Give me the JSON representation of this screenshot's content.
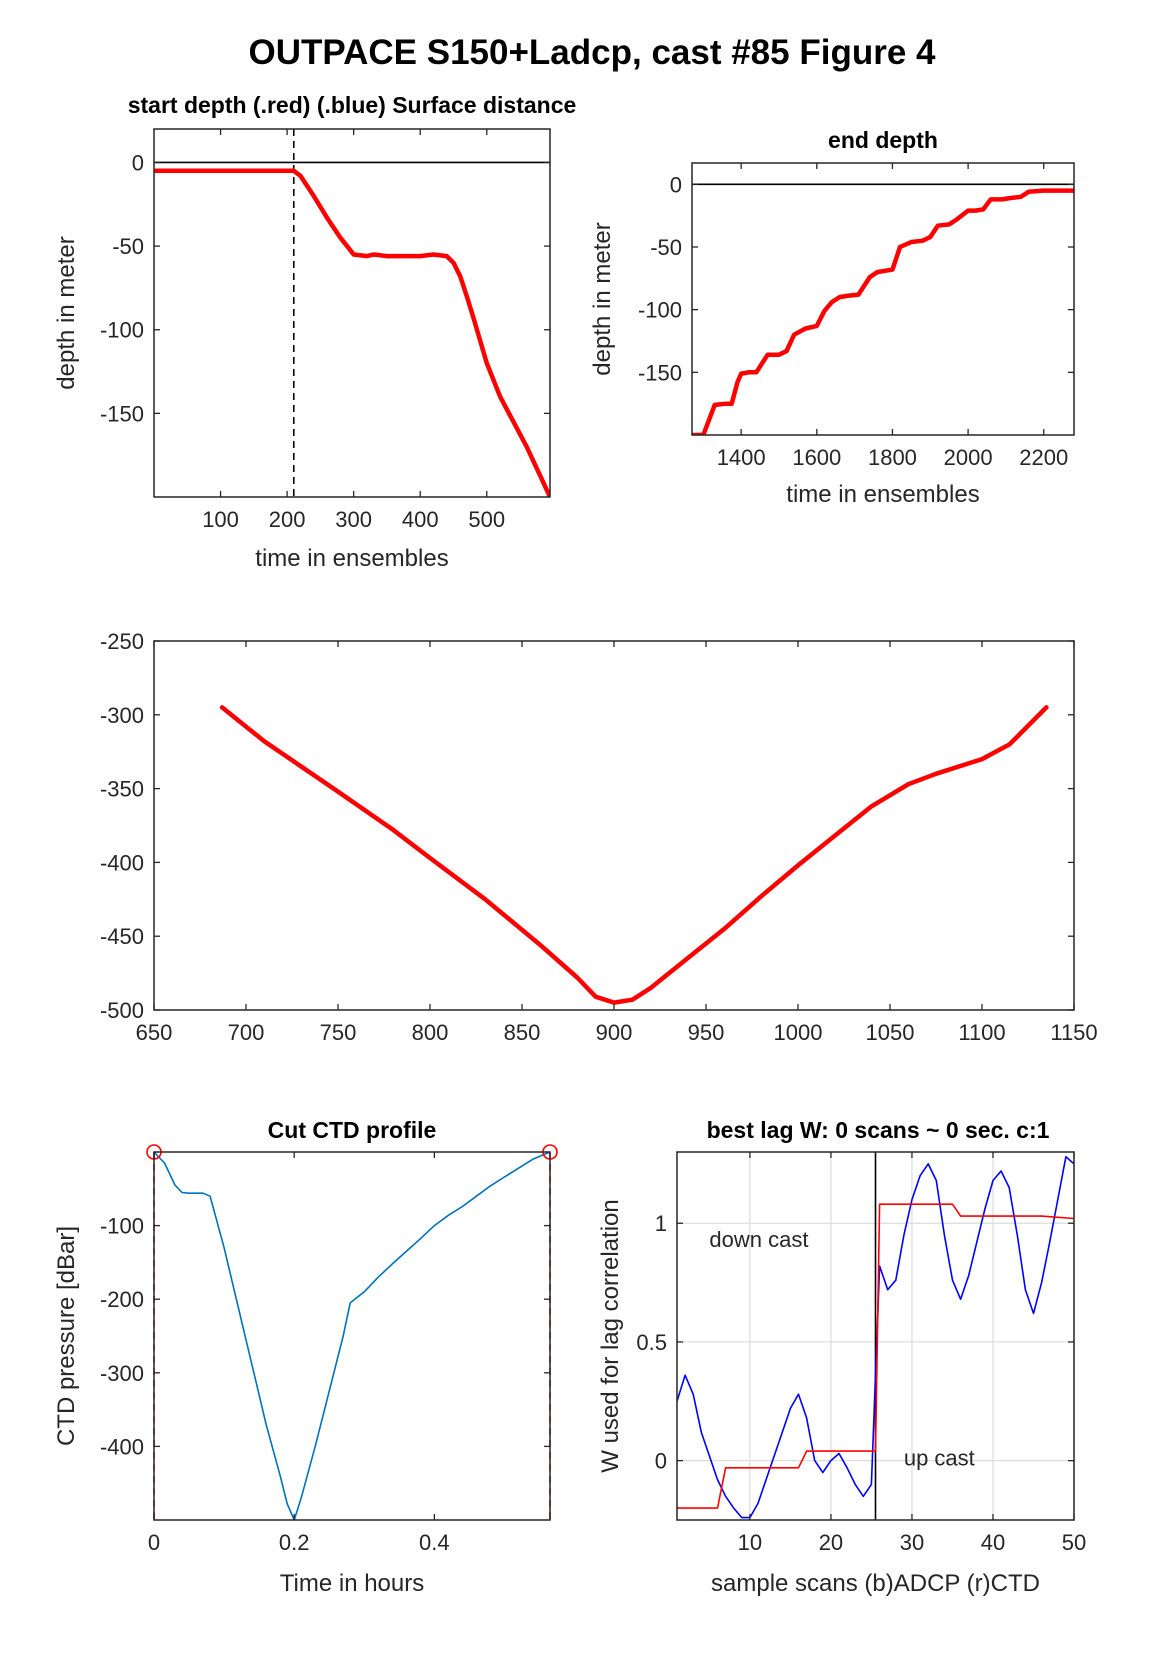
{
  "figure_title": "OUTPACE S150+Ladcp, cast #85   Figure 4",
  "chart_data": [
    {
      "id": "start_depth",
      "type": "line",
      "title": "start depth (.red) (.blue) Surface distance",
      "xlabel": "time in ensembles",
      "ylabel": "depth in meter",
      "xlim": [
        0,
        595
      ],
      "ylim": [
        -200,
        20
      ],
      "xticks": [
        100,
        200,
        300,
        400,
        500
      ],
      "yticks": [
        0,
        -50,
        -100,
        -150
      ],
      "grid": false,
      "reference_lines": [
        {
          "orientation": "horizontal",
          "value": 0,
          "style": "solid",
          "color": "#000000"
        },
        {
          "orientation": "vertical",
          "value": 210,
          "style": "dashed",
          "color": "#000000"
        }
      ],
      "series": [
        {
          "color": "#ff0000",
          "x": [
            0,
            100,
            200,
            210,
            220,
            240,
            260,
            280,
            300,
            320,
            330,
            350,
            380,
            400,
            420,
            440,
            450,
            460,
            470,
            480,
            500,
            520,
            540,
            560,
            580,
            595
          ],
          "y": [
            -5,
            -5,
            -5,
            -5,
            -8,
            -20,
            -33,
            -45,
            -55,
            -56,
            -55,
            -56,
            -56,
            -56,
            -55,
            -56,
            -60,
            -68,
            -80,
            -93,
            -120,
            -140,
            -155,
            -170,
            -187,
            -200
          ]
        }
      ]
    },
    {
      "id": "end_depth",
      "type": "line",
      "title": "end depth",
      "xlabel": "time in ensembles",
      "ylabel": "depth in meter",
      "xlim": [
        1270,
        2280
      ],
      "ylim": [
        -200,
        17
      ],
      "xticks": [
        1400,
        1600,
        1800,
        2000,
        2200
      ],
      "yticks": [
        0,
        -50,
        -100,
        -150
      ],
      "grid": false,
      "reference_lines": [
        {
          "orientation": "horizontal",
          "value": 0,
          "style": "solid",
          "color": "#000000"
        }
      ],
      "series": [
        {
          "color": "#ff0000",
          "x": [
            1270,
            1300,
            1330,
            1360,
            1375,
            1390,
            1400,
            1420,
            1440,
            1470,
            1500,
            1520,
            1540,
            1570,
            1600,
            1620,
            1640,
            1660,
            1680,
            1710,
            1740,
            1760,
            1780,
            1800,
            1820,
            1850,
            1880,
            1900,
            1920,
            1950,
            1970,
            2000,
            2020,
            2040,
            2060,
            2090,
            2110,
            2140,
            2160,
            2200,
            2280
          ],
          "y": [
            -200,
            -200,
            -176,
            -175,
            -175,
            -158,
            -151,
            -150,
            -150,
            -136,
            -136,
            -133,
            -120,
            -115,
            -113,
            -101,
            -94,
            -90,
            -89,
            -88,
            -74,
            -70,
            -69,
            -68,
            -50,
            -46,
            -45,
            -42,
            -33,
            -32,
            -28,
            -21,
            -21,
            -20,
            -12,
            -12,
            -11,
            -10,
            -6,
            -5,
            -5
          ]
        }
      ]
    },
    {
      "id": "middle_panel",
      "type": "line",
      "title": "",
      "xlabel": "",
      "ylabel": "",
      "xlim": [
        650,
        1150
      ],
      "ylim": [
        -500,
        -250
      ],
      "xticks": [
        650,
        700,
        750,
        800,
        850,
        900,
        950,
        1000,
        1050,
        1100,
        1150
      ],
      "yticks": [
        -250,
        -300,
        -350,
        -400,
        -450,
        -500
      ],
      "grid": false,
      "series": [
        {
          "color": "#ff0000",
          "x": [
            687,
            710,
            730,
            750,
            780,
            800,
            830,
            860,
            880,
            890,
            900,
            910,
            920,
            940,
            960,
            980,
            1000,
            1020,
            1040,
            1060,
            1075,
            1090,
            1100,
            1115,
            1135
          ],
          "y": [
            -295,
            -318,
            -335,
            -352,
            -378,
            -397,
            -425,
            -456,
            -478,
            -491,
            -495,
            -493,
            -485,
            -465,
            -445,
            -423,
            -402,
            -382,
            -362,
            -347,
            -340,
            -334,
            -330,
            -320,
            -295
          ]
        }
      ]
    },
    {
      "id": "cut_ctd_profile",
      "type": "line",
      "title": "Cut CTD profile",
      "xlabel": "Time in hours",
      "ylabel": "CTD pressure [dBar]",
      "xlim": [
        0,
        0.565
      ],
      "ylim": [
        -500,
        0
      ],
      "xticks": [
        0,
        0.2,
        0.4
      ],
      "yticks": [
        -100,
        -200,
        -300,
        -400
      ],
      "grid": false,
      "reference_lines": [
        {
          "orientation": "vertical",
          "value": 0,
          "style": "dashed",
          "color": "#ff0000"
        },
        {
          "orientation": "vertical",
          "value": 0.565,
          "style": "dashed",
          "color": "#ff0000"
        }
      ],
      "markers": [
        {
          "x": 0,
          "y": 0,
          "shape": "circle",
          "color": "#ff0000"
        },
        {
          "x": 0.565,
          "y": 0,
          "shape": "circle",
          "color": "#ff0000"
        }
      ],
      "series": [
        {
          "color": "#0072bd",
          "x": [
            0,
            0.015,
            0.03,
            0.04,
            0.05,
            0.06,
            0.07,
            0.08,
            0.1,
            0.12,
            0.14,
            0.16,
            0.18,
            0.19,
            0.2,
            0.21,
            0.23,
            0.25,
            0.27,
            0.28,
            0.3,
            0.32,
            0.34,
            0.36,
            0.38,
            0.4,
            0.42,
            0.44,
            0.46,
            0.48,
            0.5,
            0.52,
            0.54,
            0.565
          ],
          "y": [
            0,
            -15,
            -45,
            -55,
            -56,
            -56,
            -56,
            -60,
            -130,
            -210,
            -290,
            -370,
            -440,
            -478,
            -500,
            -470,
            -400,
            -325,
            -250,
            -205,
            -190,
            -170,
            -152,
            -135,
            -118,
            -100,
            -86,
            -74,
            -60,
            -46,
            -34,
            -22,
            -10,
            0
          ]
        }
      ]
    },
    {
      "id": "best_lag",
      "type": "line",
      "title": "best lag W: 0 scans ~ 0 sec.  c:1",
      "xlabel": "sample scans (b)ADCP (r)CTD",
      "ylabel": "W used for lag correlation",
      "xlim": [
        1,
        50
      ],
      "ylim": [
        -0.25,
        1.3
      ],
      "xticks": [
        10,
        20,
        30,
        40,
        50
      ],
      "yticks": [
        0,
        0.5,
        1
      ],
      "grid": true,
      "reference_lines": [
        {
          "orientation": "vertical",
          "value": 25.5,
          "style": "solid",
          "color": "#000000"
        }
      ],
      "annotations": [
        "down cast",
        "up cast"
      ],
      "series": [
        {
          "color": "#0000ff",
          "x": [
            1,
            2,
            3,
            4,
            5,
            6,
            7,
            8,
            9,
            10,
            11,
            12,
            13,
            14,
            15,
            16,
            17,
            18,
            19,
            20,
            21,
            22,
            23,
            24,
            25,
            26,
            27,
            28,
            29,
            30,
            31,
            32,
            33,
            34,
            35,
            36,
            37,
            38,
            39,
            40,
            41,
            42,
            43,
            44,
            45,
            46,
            47,
            48,
            49,
            50
          ],
          "y": [
            0.25,
            0.36,
            0.28,
            0.12,
            0.02,
            -0.08,
            -0.15,
            -0.2,
            -0.24,
            -0.24,
            -0.18,
            -0.08,
            0.02,
            0.12,
            0.22,
            0.28,
            0.18,
            0.0,
            -0.05,
            0.0,
            0.03,
            -0.03,
            -0.1,
            -0.15,
            -0.1,
            0.82,
            0.72,
            0.76,
            0.95,
            1.1,
            1.2,
            1.25,
            1.18,
            0.95,
            0.76,
            0.68,
            0.78,
            0.92,
            1.06,
            1.18,
            1.22,
            1.15,
            0.95,
            0.72,
            0.62,
            0.75,
            0.92,
            1.1,
            1.28,
            1.25
          ]
        },
        {
          "color": "#ff0000",
          "x": [
            1,
            5,
            6,
            7,
            8,
            15,
            16,
            17,
            25,
            25.5,
            26,
            34,
            35,
            36,
            45,
            46,
            50
          ],
          "y": [
            -0.2,
            -0.2,
            -0.2,
            -0.03,
            -0.03,
            -0.03,
            -0.03,
            0.04,
            0.04,
            0.04,
            1.08,
            1.08,
            1.08,
            1.03,
            1.03,
            1.03,
            1.02
          ]
        }
      ]
    }
  ]
}
